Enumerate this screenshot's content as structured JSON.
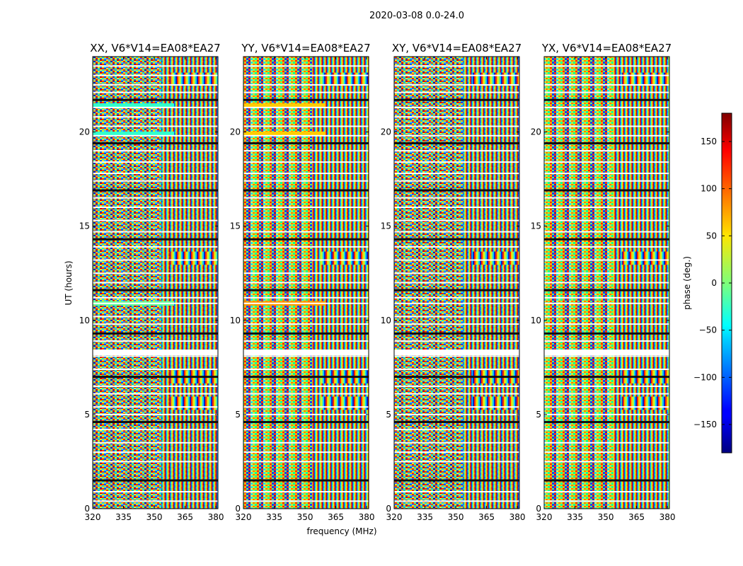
{
  "chart_data": {
    "type": "heatmap",
    "suptitle": "2020-03-08 0.0-24.0",
    "xlabel": "frequency (MHz)",
    "ylabel": "UT (hours)",
    "xlim": [
      320,
      381
    ],
    "ylim": [
      0,
      24
    ],
    "xticks": [
      320,
      335,
      350,
      365,
      380
    ],
    "yticks": [
      0,
      5,
      10,
      15,
      20
    ],
    "panels": [
      {
        "title": "XX, V6*V14=EA08*EA27",
        "polarization": "XX"
      },
      {
        "title": "YY, V6*V14=EA08*EA27",
        "polarization": "YY"
      },
      {
        "title": "XY, V6*V14=EA08*EA27",
        "polarization": "XY"
      },
      {
        "title": "YX, V6*V14=EA08*EA27",
        "polarization": "YX"
      }
    ],
    "colorbar": {
      "label": "phase (deg.)",
      "range": [
        -180,
        180
      ],
      "ticks": [
        150,
        100,
        50,
        0,
        -50,
        -100,
        -150
      ],
      "colormap": "jet"
    },
    "flagged_time_gaps_hours": [
      0.4,
      0.9,
      1.5,
      2.5,
      3.0,
      3.5,
      4.2,
      4.6,
      5.0,
      5.4,
      6.1,
      6.5,
      7.0,
      7.4,
      8.1,
      8.4,
      8.9,
      9.3,
      9.8,
      10.2,
      10.9,
      11.2,
      11.6,
      12.0,
      12.5,
      13.2,
      13.9,
      14.3,
      14.7,
      15.3,
      16.0,
      16.5,
      16.9,
      17.4,
      17.8,
      18.4,
      19.0,
      19.4,
      19.8,
      20.3,
      20.8,
      21.3,
      21.7,
      22.1,
      22.5,
      23.0,
      23.5
    ],
    "highlight_bands": {
      "XX": [
        {
          "ut": 21.4,
          "color": "#33ffcc"
        },
        {
          "ut": 19.9,
          "color": "#33ffcc"
        },
        {
          "ut": 10.9,
          "color": "#66ff99"
        }
      ],
      "YY": [
        {
          "ut": 21.4,
          "color": "#ffcc00"
        },
        {
          "ut": 19.9,
          "color": "#ffcc00"
        },
        {
          "ut": 10.9,
          "color": "#ff9900"
        }
      ],
      "XY": [],
      "YX": []
    }
  }
}
